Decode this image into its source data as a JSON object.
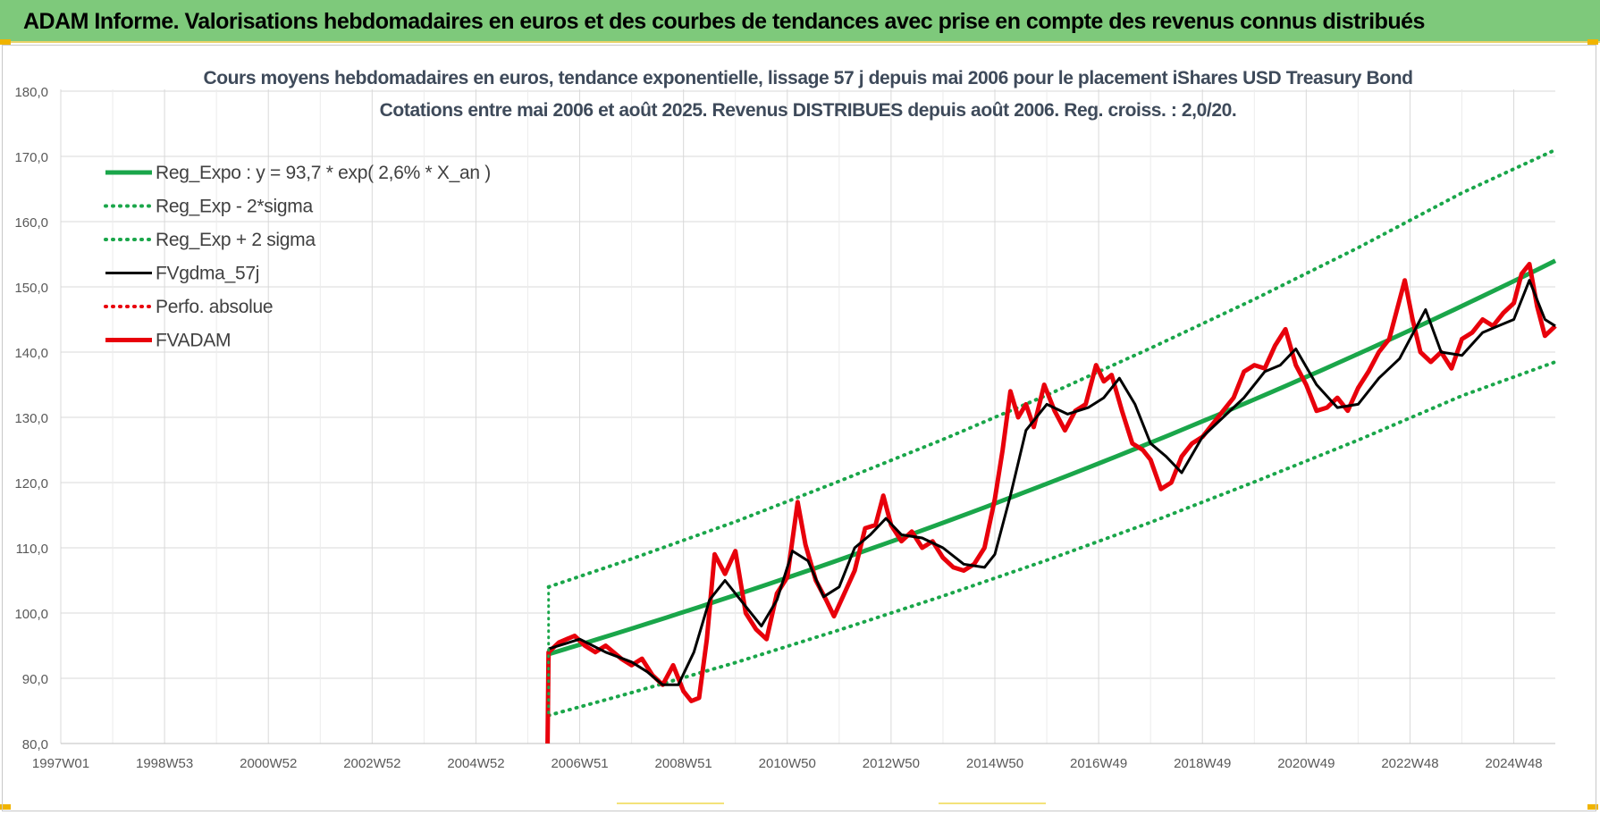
{
  "header": {
    "title": "ADAM Informe. Valorisations hebdomadaires en euros et des courbes de tendances avec prise en compte des revenus connus distribués"
  },
  "colors": {
    "banner": "#7ec97b",
    "trend": "#1aa64a",
    "band": "#1aa64a",
    "smooth": "#000000",
    "price": "#e8000b",
    "perfo": "#e8000b",
    "grid": "#d9d9d9",
    "axis_text": "#595959"
  },
  "chart_data": {
    "type": "line",
    "title": "Cours moyens hebdomadaires en euros, tendance exponentielle, lissage 57 j depuis mai 2006 pour le placement iShares USD Treasury Bond",
    "subtitle": "Cotations entre mai 2006 et août 2025. Revenus DISTRIBUES depuis août 2006. Reg. croiss. : 2,0/20.",
    "xlabel": "",
    "ylabel": "",
    "ylim": [
      80,
      180
    ],
    "yticks": [
      "80,0",
      "90,0",
      "100,0",
      "110,0",
      "120,0",
      "130,0",
      "140,0",
      "150,0",
      "160,0",
      "170,0",
      "180,0"
    ],
    "xlim": [
      1997.0,
      2025.8
    ],
    "xticks": [
      {
        "label": "1997W01",
        "x": 1997.0
      },
      {
        "label": "1998W53",
        "x": 1999.0
      },
      {
        "label": "2000W52",
        "x": 2001.0
      },
      {
        "label": "2002W52",
        "x": 2003.0
      },
      {
        "label": "2004W52",
        "x": 2005.0
      },
      {
        "label": "2006W51",
        "x": 2007.0
      },
      {
        "label": "2008W51",
        "x": 2009.0
      },
      {
        "label": "2010W50",
        "x": 2011.0
      },
      {
        "label": "2012W50",
        "x": 2013.0
      },
      {
        "label": "2014W50",
        "x": 2015.0
      },
      {
        "label": "2016W49",
        "x": 2017.0
      },
      {
        "label": "2018W49",
        "x": 2019.0
      },
      {
        "label": "2020W49",
        "x": 2021.0
      },
      {
        "label": "2022W48",
        "x": 2023.0
      },
      {
        "label": "2024W48",
        "x": 2025.0
      }
    ],
    "grid": true,
    "legend": "top-left",
    "series": [
      {
        "name": "Reg_Expo : y = 93,7 * exp( 2,6% *  X_an )",
        "style": "solid-thick",
        "x": [
          2006.4,
          2025.8
        ],
        "y": [
          93.7,
          154.0
        ]
      },
      {
        "name": "Reg_Exp - 2*sigma",
        "style": "dotted",
        "x": [
          2006.4,
          2008,
          2010,
          2012,
          2014,
          2016,
          2018,
          2020,
          2022,
          2024,
          2025.8
        ],
        "y": [
          84.3,
          87.8,
          92.4,
          97.4,
          102.6,
          108.1,
          113.9,
          120.1,
          126.5,
          133.3,
          138.5
        ]
      },
      {
        "name": "Reg_Exp + 2 sigma",
        "style": "dotted",
        "x": [
          2006.4,
          2008,
          2010,
          2012,
          2014,
          2016,
          2018,
          2020,
          2022,
          2024,
          2025.8
        ],
        "y": [
          104.0,
          108.3,
          114.0,
          120.2,
          126.6,
          133.4,
          140.6,
          148.1,
          156.0,
          164.4,
          171.0
        ]
      },
      {
        "name": "FVgdma_57j",
        "style": "solid",
        "x": [
          2006.4,
          2007.0,
          2007.5,
          2008.0,
          2008.3,
          2008.6,
          2008.9,
          2009.2,
          2009.5,
          2009.8,
          2010.2,
          2010.5,
          2010.8,
          2011.1,
          2011.4,
          2011.7,
          2012.0,
          2012.3,
          2012.6,
          2012.9,
          2013.2,
          2013.6,
          2014.0,
          2014.4,
          2014.8,
          2015.0,
          2015.3,
          2015.6,
          2016.0,
          2016.4,
          2016.8,
          2017.1,
          2017.4,
          2017.7,
          2018.0,
          2018.3,
          2018.6,
          2019.0,
          2019.4,
          2019.8,
          2020.2,
          2020.5,
          2020.8,
          2021.2,
          2021.6,
          2022.0,
          2022.4,
          2022.8,
          2023.0,
          2023.3,
          2023.6,
          2024.0,
          2024.4,
          2024.7,
          2025.0,
          2025.3,
          2025.6,
          2025.8
        ],
        "y": [
          94.5,
          96.0,
          94.0,
          92.5,
          91.0,
          89.0,
          89.0,
          94.0,
          102.0,
          105.0,
          101.0,
          98.0,
          102.0,
          109.5,
          108.0,
          102.5,
          104.0,
          110.0,
          112.0,
          114.5,
          112.0,
          111.5,
          110.0,
          107.5,
          107.0,
          109.0,
          118.0,
          128.0,
          132.0,
          130.5,
          131.5,
          133.0,
          136.0,
          132.0,
          126.0,
          124.0,
          121.5,
          127.0,
          130.0,
          133.0,
          137.0,
          138.0,
          140.5,
          135.0,
          131.5,
          132.0,
          136.0,
          139.0,
          142.0,
          146.5,
          140.0,
          139.5,
          143.0,
          144.0,
          145.0,
          151.0,
          145.0,
          144.0
        ]
      },
      {
        "name": "Perfo. absolue",
        "style": "dotted",
        "x": [],
        "y": []
      },
      {
        "name": "FVADAM",
        "style": "solid-thick",
        "x": [
          2006.38,
          2006.4,
          2006.6,
          2006.9,
          2007.1,
          2007.3,
          2007.5,
          2007.8,
          2008.0,
          2008.2,
          2008.4,
          2008.6,
          2008.8,
          2009.0,
          2009.15,
          2009.3,
          2009.45,
          2009.6,
          2009.8,
          2010.0,
          2010.2,
          2010.4,
          2010.6,
          2010.8,
          2011.0,
          2011.2,
          2011.35,
          2011.55,
          2011.75,
          2011.9,
          2012.1,
          2012.3,
          2012.5,
          2012.7,
          2012.85,
          2013.0,
          2013.2,
          2013.4,
          2013.6,
          2013.8,
          2014.0,
          2014.2,
          2014.4,
          2014.6,
          2014.8,
          2015.0,
          2015.15,
          2015.3,
          2015.45,
          2015.6,
          2015.75,
          2015.95,
          2016.15,
          2016.35,
          2016.55,
          2016.75,
          2016.95,
          2017.1,
          2017.25,
          2017.45,
          2017.65,
          2017.85,
          2018.0,
          2018.2,
          2018.4,
          2018.6,
          2018.8,
          2019.0,
          2019.2,
          2019.4,
          2019.6,
          2019.8,
          2020.0,
          2020.2,
          2020.4,
          2020.6,
          2020.8,
          2021.0,
          2021.2,
          2021.4,
          2021.6,
          2021.8,
          2022.0,
          2022.2,
          2022.4,
          2022.6,
          2022.75,
          2022.9,
          2023.05,
          2023.2,
          2023.4,
          2023.6,
          2023.8,
          2024.0,
          2024.2,
          2024.4,
          2024.6,
          2024.8,
          2025.0,
          2025.15,
          2025.3,
          2025.45,
          2025.6,
          2025.8
        ],
        "y": [
          80.0,
          94.0,
          95.5,
          96.5,
          95.0,
          94.0,
          95.0,
          93.0,
          92.0,
          93.0,
          90.5,
          89.0,
          92.0,
          88.0,
          86.5,
          87.0,
          96.0,
          109.0,
          106.0,
          109.5,
          100.0,
          97.5,
          96.0,
          103.0,
          105.5,
          117.0,
          110.5,
          105.0,
          102.0,
          99.5,
          103.0,
          106.5,
          113.0,
          113.5,
          118.0,
          113.5,
          111.0,
          112.5,
          110.0,
          111.0,
          108.5,
          107.0,
          106.5,
          107.5,
          110.0,
          117.5,
          125.0,
          134.0,
          130.0,
          132.0,
          128.5,
          135.0,
          131.0,
          128.0,
          131.0,
          132.0,
          138.0,
          135.5,
          136.5,
          131.0,
          126.0,
          125.0,
          123.5,
          119.0,
          120.0,
          124.0,
          126.0,
          127.0,
          129.0,
          131.0,
          133.0,
          137.0,
          138.0,
          137.5,
          141.0,
          143.5,
          138.0,
          135.0,
          131.0,
          131.5,
          133.0,
          131.0,
          134.5,
          137.0,
          140.0,
          142.0,
          146.5,
          151.0,
          145.0,
          140.0,
          138.5,
          140.0,
          137.5,
          142.0,
          143.0,
          145.0,
          144.0,
          146.0,
          147.5,
          152.0,
          153.5,
          147.0,
          142.5,
          144.0
        ]
      }
    ]
  }
}
